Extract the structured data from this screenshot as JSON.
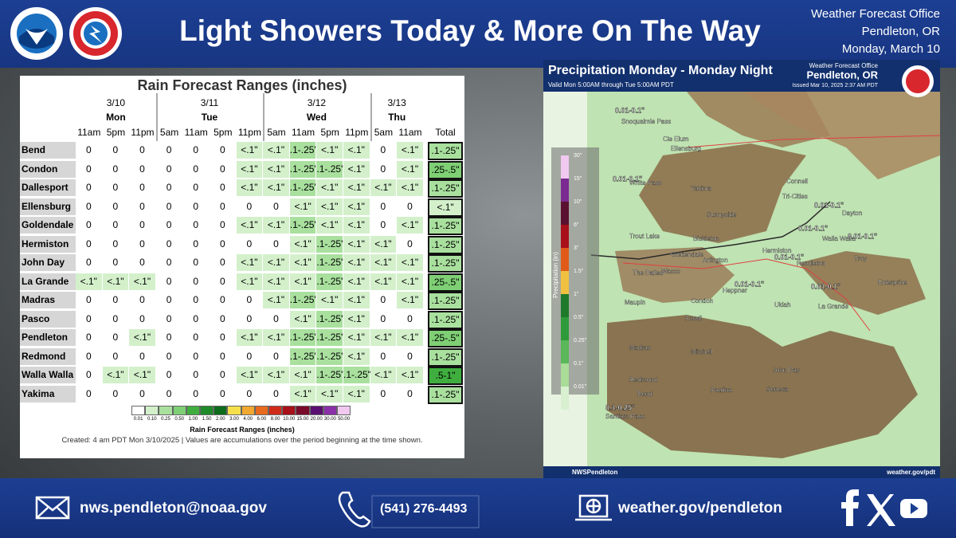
{
  "header": {
    "title": "Light Showers Today & More On The Way",
    "office": "Weather Forecast Office",
    "location": "Pendleton, OR",
    "date": "Monday, March 10"
  },
  "table": {
    "title": "Rain Forecast Ranges (inches)",
    "days": [
      {
        "date": "3/10",
        "day": "Mon"
      },
      {
        "date": "3/11",
        "day": "Tue"
      },
      {
        "date": "3/12",
        "day": "Wed"
      },
      {
        "date": "3/13",
        "day": "Thu"
      }
    ],
    "times": [
      "11am",
      "5pm",
      "11pm",
      "5am",
      "11am",
      "5pm",
      "11pm",
      "5am",
      "11am",
      "5pm",
      "11pm",
      "5am",
      "11am"
    ],
    "total_header": "Total",
    "cell_colors": {
      "0": "#ffffff",
      "<.1\"": "#d3f0cb",
      "<.1": "#d3f0cb",
      ".1-.25\"": "#a9e09e",
      ".25-.5\"": "#7fcf75",
      ".5-1\"": "#3fae3f"
    },
    "rows": [
      {
        "city": "Bend",
        "values": [
          "0",
          "0",
          "0",
          "0",
          "0",
          "0",
          "<.1\"",
          "<.1\"",
          ".1-.25\"",
          "<.1\"",
          "<.1\"",
          "0",
          "<.1\""
        ],
        "total": ".1-.25\""
      },
      {
        "city": "Condon",
        "values": [
          "0",
          "0",
          "0",
          "0",
          "0",
          "0",
          "<.1\"",
          "<.1\"",
          ".1-.25\"",
          ".1-.25\"",
          "<.1\"",
          "0",
          "<.1\""
        ],
        "total": ".25-.5\""
      },
      {
        "city": "Dallesport",
        "values": [
          "0",
          "0",
          "0",
          "0",
          "0",
          "0",
          "<.1\"",
          "<.1\"",
          ".1-.25\"",
          "<.1\"",
          "<.1\"",
          "<.1\"",
          "<.1\""
        ],
        "total": ".1-.25\""
      },
      {
        "city": "Ellensburg",
        "values": [
          "0",
          "0",
          "0",
          "0",
          "0",
          "0",
          "0",
          "0",
          "<.1\"",
          "<.1\"",
          "<.1\"",
          "0",
          "0"
        ],
        "total": "<.1\""
      },
      {
        "city": "Goldendale",
        "values": [
          "0",
          "0",
          "0",
          "0",
          "0",
          "0",
          "<.1\"",
          "<.1\"",
          ".1-.25\"",
          "<.1\"",
          "<.1\"",
          "0",
          "<.1\""
        ],
        "total": ".1-.25\""
      },
      {
        "city": "Hermiston",
        "values": [
          "0",
          "0",
          "0",
          "0",
          "0",
          "0",
          "0",
          "0",
          "<.1\"",
          ".1-.25\"",
          "<.1\"",
          "<.1\"",
          "0"
        ],
        "total": ".1-.25\""
      },
      {
        "city": "John Day",
        "values": [
          "0",
          "0",
          "0",
          "0",
          "0",
          "0",
          "<.1\"",
          "<.1\"",
          "<.1\"",
          ".1-.25\"",
          "<.1\"",
          "<.1\"",
          "<.1\""
        ],
        "total": ".1-.25\""
      },
      {
        "city": "La Grande",
        "values": [
          "<.1\"",
          "<.1\"",
          "<.1\"",
          "0",
          "0",
          "0",
          "<.1\"",
          "<.1\"",
          "<.1\"",
          ".1-.25\"",
          "<.1\"",
          "<.1\"",
          "<.1\""
        ],
        "total": ".25-.5\""
      },
      {
        "city": "Madras",
        "values": [
          "0",
          "0",
          "0",
          "0",
          "0",
          "0",
          "0",
          "<.1\"",
          ".1-.25\"",
          "<.1\"",
          "<.1\"",
          "0",
          "<.1\""
        ],
        "total": ".1-.25\""
      },
      {
        "city": "Pasco",
        "values": [
          "0",
          "0",
          "0",
          "0",
          "0",
          "0",
          "0",
          "0",
          "<.1\"",
          ".1-.25\"",
          "<.1\"",
          "0",
          "0"
        ],
        "total": ".1-.25\""
      },
      {
        "city": "Pendleton",
        "values": [
          "0",
          "0",
          "<.1\"",
          "0",
          "0",
          "0",
          "<.1\"",
          "<.1\"",
          ".1-.25\"",
          ".1-.25\"",
          "<.1\"",
          "<.1\"",
          "<.1\""
        ],
        "total": ".25-.5\""
      },
      {
        "city": "Redmond",
        "values": [
          "0",
          "0",
          "0",
          "0",
          "0",
          "0",
          "0",
          "0",
          ".1-.25\"",
          ".1-.25\"",
          "<.1\"",
          "0",
          "0"
        ],
        "total": ".1-.25\""
      },
      {
        "city": "Walla Walla",
        "values": [
          "0",
          "<.1\"",
          "<.1\"",
          "0",
          "0",
          "0",
          "<.1\"",
          "<.1\"",
          "<.1\"",
          ".1-.25\"",
          ".1-.25\"",
          "<.1\"",
          "<.1\""
        ],
        "total": ".5-1\""
      },
      {
        "city": "Yakima",
        "values": [
          "0",
          "0",
          "0",
          "0",
          "0",
          "0",
          "0",
          "0",
          "<.1\"",
          "<.1\"",
          "<.1\"",
          "0",
          "0"
        ],
        "total": ".1-.25\""
      }
    ],
    "legend": {
      "labels": [
        "0.01",
        "0.10",
        "0.25",
        "0.50",
        "1.00",
        "1.50",
        "2.00",
        "3.00",
        "4.00",
        "6.00",
        "8.00",
        "10.00",
        "15.00",
        "20.00",
        "30.00",
        "50.00"
      ],
      "colors": [
        "#ffffff",
        "#d3f0cb",
        "#a9e09e",
        "#7fcf75",
        "#3fae3f",
        "#1e8a2a",
        "#0d6b1c",
        "#f5e04a",
        "#f0a830",
        "#e86a1e",
        "#d02a1a",
        "#a8101a",
        "#7a0a2a",
        "#5a1070",
        "#8a30a8",
        "#f0c8f0"
      ],
      "title": "Rain Forecast Ranges (inches)"
    },
    "footnote": "Created: 4 am PDT Mon 3/10/2025  |  Values are accumulations over the period beginning at the time shown."
  },
  "map": {
    "title": "Precipitation Monday - Monday Night",
    "valid": "Valid Mon 5:00AM through Tue 5:00AM PDT",
    "office": "Weather Forecast Office",
    "location": "Pendleton, OR",
    "issued": "Issued Mar 10, 2025 2:37 AM PDT",
    "colorbar_title": "Precipitation (in)",
    "colorbar_labels": [
      "30\"",
      "15\"",
      "10\"",
      "6\"",
      "3\"",
      "1.5\"",
      "1\"",
      "0.5\"",
      "0.25\"",
      "0.1\"",
      "0.01\""
    ],
    "colorbar_colors": [
      "#f0c8f0",
      "#7a2a90",
      "#5a1030",
      "#a8101a",
      "#e05a1a",
      "#f0c040",
      "#1e7a2a",
      "#2e9a3a",
      "#5ab85a",
      "#a8dc98",
      "#d8f0d0"
    ],
    "places": [
      "Cle Elum",
      "Ellensburg",
      "Yakima",
      "Sunnyside",
      "Tri-Cities",
      "Connell",
      "Dayton",
      "Walla Walla",
      "Troy",
      "Bickleton",
      "Goldendale",
      "Arlington",
      "Hermiston",
      "Pendleton",
      "The Dalles",
      "Wasco",
      "Heppner",
      "Enterprise",
      "Maupin",
      "Condon",
      "Ukiah",
      "La Grande",
      "Fossil",
      "Madras",
      "Mitchell",
      "Redmond",
      "John Day",
      "Paulina",
      "Seneca",
      "Bend",
      "Trout Lake",
      "White Pass",
      "Snoqualmie Pass",
      "Santiam Pass"
    ],
    "amounts": [
      "0.01-0.1\"",
      "0.01-0.1\"",
      "0.01-0.1\"",
      "0.01-0.1\"",
      "0.01-0.1\"",
      "0.01-0.1\"",
      "0.01-0.1\"",
      "0.01-0.1\"",
      "0.1-0.25\""
    ],
    "social": "NWSPendleton",
    "url": "weather.gov/pdt"
  },
  "footer": {
    "email": "nws.pendleton@noaa.gov",
    "phone": "(541) 276-4493",
    "website": "weather.gov/pendleton"
  }
}
